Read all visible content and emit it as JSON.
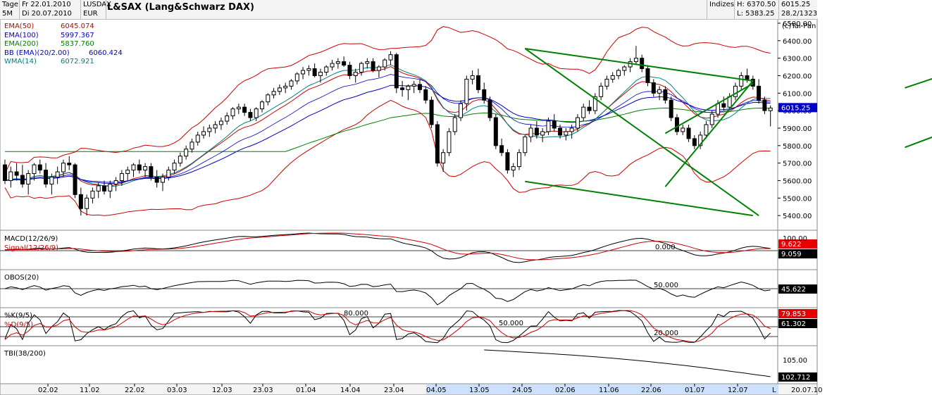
{
  "header": {
    "period_label": "Tage",
    "interval_label": "5M",
    "date_from": "Fr 22.01.2010",
    "date_to": "Di 20.07.2010",
    "symbol": "LUSDAX",
    "currency": "EUR",
    "title": "L&SAX (Lang&Schwarz DAX)",
    "category": "Indizes",
    "high_label": "H: 6370.50",
    "low_label": "L: 5383.25",
    "last_value": "6015.25",
    "last_date": "28.2/1323",
    "copyright": "(c)Tai-Pan"
  },
  "indicators": [
    {
      "name": "EMA(50)",
      "value": "6045.074",
      "color": "#cc0000"
    },
    {
      "name": "EMA(100)",
      "value": "5997.367",
      "color": "#0000cc"
    },
    {
      "name": "EMA(200)",
      "value": "5837.760",
      "color": "#008000"
    },
    {
      "name": "BB (EMA)(20/2.00)",
      "value": "6060.424",
      "color": "#0000cc"
    },
    {
      "name": "WMA(14)",
      "value": "6072.921",
      "color": "#008080"
    }
  ],
  "panels": {
    "macd": {
      "label": "MACD(12/26/9)",
      "signal_label": "Signal(12/26/9)",
      "zero_label": "0.000",
      "macd_value": "9.622",
      "signal_value": "9.059",
      "top_tick": "100.00"
    },
    "obos": {
      "label": "OBOS(20)",
      "level_label": "50.000",
      "value": "45.622"
    },
    "stoch": {
      "k_label": "%K(9/5)",
      "d_label": "%D(9/5)",
      "lvl80": "80.000",
      "lvl50": "50.000",
      "lvl20": "20.000",
      "k_value": "79.853",
      "d_value": "61.302"
    },
    "tbi": {
      "label": "TBI(38/200)",
      "tick": "105.00",
      "value": "102.712"
    }
  },
  "chart_data": {
    "type": "candlestick",
    "ylim": [
      5320,
      6520
    ],
    "y_ticks": [
      6500,
      6400,
      6300,
      6200,
      6100,
      6000,
      5900,
      5800,
      5700,
      5600,
      5500,
      5400
    ],
    "last_price_label": "6015.25",
    "x_tick_labels": [
      "02.02",
      "11.02",
      "22.02",
      "03.03",
      "12.03",
      "23.03",
      "01.04",
      "14.04",
      "23.04",
      "04.05",
      "13.05",
      "24.05",
      "02.06",
      "11.06",
      "22.06",
      "01.07",
      "12.07",
      "20.07.10"
    ],
    "x_end_marker": "L",
    "candles": [
      [
        5690,
        5720,
        5580,
        5600
      ],
      [
        5600,
        5680,
        5560,
        5650
      ],
      [
        5650,
        5700,
        5600,
        5630
      ],
      [
        5630,
        5690,
        5560,
        5580
      ],
      [
        5580,
        5660,
        5520,
        5640
      ],
      [
        5640,
        5700,
        5600,
        5690
      ],
      [
        5690,
        5720,
        5640,
        5660
      ],
      [
        5660,
        5700,
        5560,
        5580
      ],
      [
        5580,
        5640,
        5520,
        5620
      ],
      [
        5620,
        5680,
        5580,
        5650
      ],
      [
        5650,
        5720,
        5620,
        5700
      ],
      [
        5700,
        5740,
        5660,
        5690
      ],
      [
        5690,
        5700,
        5500,
        5520
      ],
      [
        5520,
        5560,
        5400,
        5440
      ],
      [
        5440,
        5520,
        5400,
        5500
      ],
      [
        5500,
        5560,
        5470,
        5540
      ],
      [
        5540,
        5590,
        5500,
        5570
      ],
      [
        5570,
        5600,
        5520,
        5540
      ],
      [
        5540,
        5600,
        5500,
        5580
      ],
      [
        5580,
        5620,
        5540,
        5600
      ],
      [
        5600,
        5660,
        5570,
        5640
      ],
      [
        5640,
        5680,
        5600,
        5660
      ],
      [
        5660,
        5700,
        5620,
        5690
      ],
      [
        5690,
        5720,
        5640,
        5660
      ],
      [
        5660,
        5700,
        5620,
        5680
      ],
      [
        5680,
        5700,
        5600,
        5620
      ],
      [
        5620,
        5660,
        5560,
        5590
      ],
      [
        5590,
        5640,
        5540,
        5620
      ],
      [
        5620,
        5680,
        5600,
        5660
      ],
      [
        5660,
        5720,
        5640,
        5700
      ],
      [
        5700,
        5760,
        5680,
        5740
      ],
      [
        5740,
        5800,
        5720,
        5780
      ],
      [
        5780,
        5840,
        5760,
        5820
      ],
      [
        5820,
        5880,
        5800,
        5860
      ],
      [
        5860,
        5910,
        5840,
        5880
      ],
      [
        5880,
        5920,
        5850,
        5900
      ],
      [
        5900,
        5940,
        5870,
        5920
      ],
      [
        5920,
        5960,
        5890,
        5940
      ],
      [
        5940,
        5990,
        5920,
        5970
      ],
      [
        5970,
        6020,
        5950,
        6010
      ],
      [
        6010,
        6040,
        5980,
        6020
      ],
      [
        6020,
        6040,
        5970,
        5990
      ],
      [
        5990,
        6010,
        5940,
        5960
      ],
      [
        5960,
        6020,
        5940,
        6010
      ],
      [
        6010,
        6060,
        5990,
        6050
      ],
      [
        6050,
        6100,
        6030,
        6090
      ],
      [
        6090,
        6130,
        6070,
        6110
      ],
      [
        6110,
        6150,
        6090,
        6130
      ],
      [
        6130,
        6160,
        6100,
        6140
      ],
      [
        6140,
        6180,
        6120,
        6170
      ],
      [
        6170,
        6220,
        6150,
        6210
      ],
      [
        6210,
        6250,
        6180,
        6230
      ],
      [
        6230,
        6260,
        6200,
        6240
      ],
      [
        6240,
        6270,
        6190,
        6200
      ],
      [
        6200,
        6240,
        6160,
        6220
      ],
      [
        6220,
        6260,
        6200,
        6250
      ],
      [
        6250,
        6290,
        6230,
        6270
      ],
      [
        6270,
        6300,
        6240,
        6280
      ],
      [
        6280,
        6310,
        6250,
        6260
      ],
      [
        6260,
        6280,
        6180,
        6200
      ],
      [
        6200,
        6240,
        6160,
        6220
      ],
      [
        6220,
        6280,
        6200,
        6270
      ],
      [
        6270,
        6300,
        6240,
        6280
      ],
      [
        6280,
        6300,
        6220,
        6230
      ],
      [
        6230,
        6260,
        6190,
        6250
      ],
      [
        6250,
        6300,
        6230,
        6290
      ],
      [
        6290,
        6340,
        6260,
        6320
      ],
      [
        6320,
        6330,
        6100,
        6130
      ],
      [
        6130,
        6170,
        6080,
        6120
      ],
      [
        6120,
        6150,
        6060,
        6140
      ],
      [
        6140,
        6170,
        6100,
        6150
      ],
      [
        6150,
        6180,
        6100,
        6120
      ],
      [
        6120,
        6140,
        6040,
        6060
      ],
      [
        6060,
        6080,
        5900,
        5920
      ],
      [
        5920,
        5940,
        5680,
        5700
      ],
      [
        5700,
        5780,
        5650,
        5760
      ],
      [
        5760,
        5900,
        5740,
        5880
      ],
      [
        5880,
        5980,
        5860,
        5960
      ],
      [
        5960,
        6060,
        5940,
        6040
      ],
      [
        6040,
        6200,
        6000,
        6180
      ],
      [
        6180,
        6230,
        6150,
        6200
      ],
      [
        6200,
        6240,
        6100,
        6120
      ],
      [
        6120,
        6160,
        6040,
        6060
      ],
      [
        6060,
        6080,
        5940,
        5960
      ],
      [
        5960,
        5980,
        5780,
        5800
      ],
      [
        5800,
        5840,
        5740,
        5760
      ],
      [
        5760,
        5780,
        5640,
        5660
      ],
      [
        5660,
        5700,
        5620,
        5680
      ],
      [
        5680,
        5780,
        5660,
        5760
      ],
      [
        5760,
        5860,
        5740,
        5850
      ],
      [
        5850,
        5920,
        5820,
        5900
      ],
      [
        5900,
        5940,
        5840,
        5860
      ],
      [
        5860,
        5900,
        5820,
        5880
      ],
      [
        5880,
        5960,
        5860,
        5940
      ],
      [
        5940,
        5980,
        5880,
        5900
      ],
      [
        5900,
        5920,
        5840,
        5860
      ],
      [
        5860,
        5900,
        5830,
        5880
      ],
      [
        5880,
        5920,
        5840,
        5900
      ],
      [
        5900,
        5980,
        5880,
        5960
      ],
      [
        5960,
        6040,
        5940,
        6020
      ],
      [
        6020,
        6060,
        5980,
        6000
      ],
      [
        6000,
        6100,
        5980,
        6080
      ],
      [
        6080,
        6160,
        6060,
        6140
      ],
      [
        6140,
        6200,
        6120,
        6180
      ],
      [
        6180,
        6220,
        6160,
        6200
      ],
      [
        6200,
        6240,
        6180,
        6230
      ],
      [
        6230,
        6260,
        6200,
        6250
      ],
      [
        6250,
        6300,
        6220,
        6280
      ],
      [
        6280,
        6370,
        6260,
        6300
      ],
      [
        6300,
        6320,
        6220,
        6240
      ],
      [
        6240,
        6260,
        6140,
        6160
      ],
      [
        6160,
        6180,
        6080,
        6100
      ],
      [
        6100,
        6140,
        6060,
        6120
      ],
      [
        6120,
        6140,
        6040,
        6060
      ],
      [
        6060,
        6080,
        5940,
        5960
      ],
      [
        5960,
        5980,
        5860,
        5880
      ],
      [
        5880,
        5920,
        5860,
        5900
      ],
      [
        5900,
        5920,
        5820,
        5840
      ],
      [
        5840,
        5860,
        5780,
        5800
      ],
      [
        5800,
        5880,
        5780,
        5860
      ],
      [
        5860,
        5940,
        5840,
        5920
      ],
      [
        5920,
        6000,
        5900,
        5980
      ],
      [
        5980,
        6060,
        5960,
        6040
      ],
      [
        6040,
        6080,
        6000,
        6020
      ],
      [
        6020,
        6100,
        6000,
        6080
      ],
      [
        6080,
        6160,
        6060,
        6140
      ],
      [
        6140,
        6220,
        6120,
        6200
      ],
      [
        6200,
        6240,
        6160,
        6180
      ],
      [
        6180,
        6200,
        6120,
        6140
      ],
      [
        6140,
        6180,
        6040,
        6060
      ],
      [
        6060,
        6080,
        5980,
        6000
      ],
      [
        6000,
        6030,
        5910,
        6015
      ]
    ],
    "channels": [
      {
        "color": "#008000",
        "from": [
          89,
          6355
        ],
        "to": [
          129,
          5400
        ]
      },
      {
        "color": "#008000",
        "from": [
          89,
          6355
        ],
        "to": [
          128,
          6170
        ]
      },
      {
        "color": "#008000",
        "from": [
          89,
          5595
        ],
        "to": [
          128,
          5400
        ]
      },
      {
        "color": "#008000",
        "from": [
          113,
          5565
        ],
        "to": [
          128,
          6170
        ]
      },
      {
        "color": "#008000",
        "from": [
          113,
          5870
        ],
        "to": [
          128,
          6155
        ]
      },
      {
        "color": "#008000",
        "from": [
          154,
          5790
        ],
        "to": [
          170,
          5990
        ]
      },
      {
        "color": "#008000",
        "from": [
          154,
          6130
        ],
        "to": [
          170,
          6310
        ]
      }
    ]
  }
}
